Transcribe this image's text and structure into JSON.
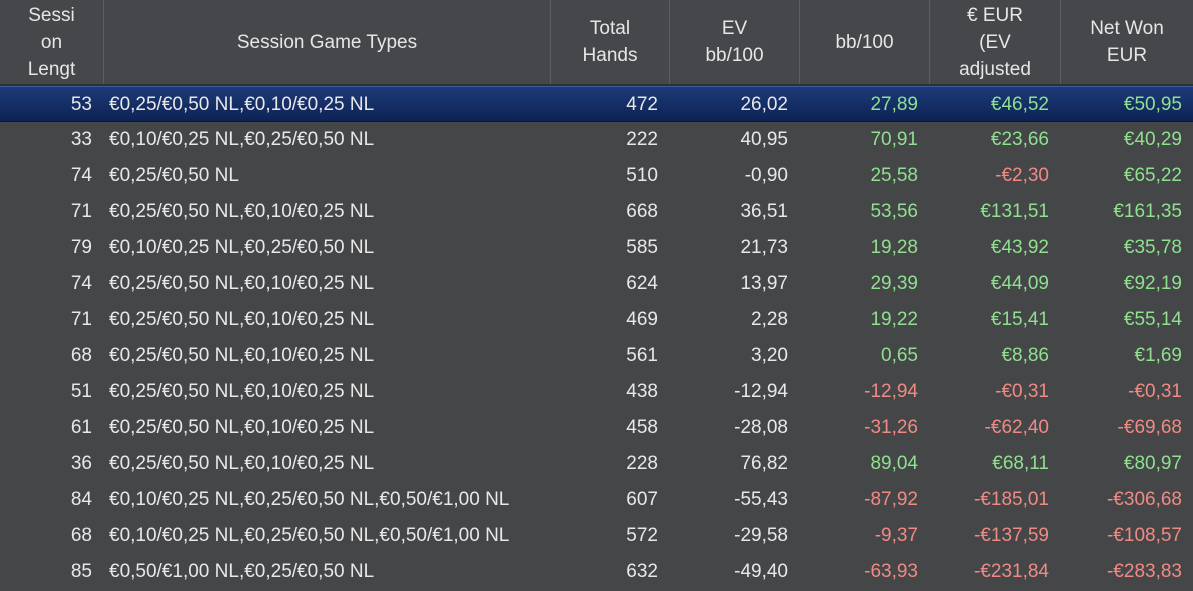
{
  "colors": {
    "positive": "#8fe08f",
    "negative": "#f08a84",
    "neutral": "#e8e8e8",
    "selected_row": "#13306a"
  },
  "columns": [
    {
      "key": "length",
      "label": "Sessi\non\nLengt"
    },
    {
      "key": "types",
      "label": "Session Game Types"
    },
    {
      "key": "hands",
      "label": "Total\nHands"
    },
    {
      "key": "ev",
      "label": "EV\nbb/100"
    },
    {
      "key": "bb",
      "label": "bb/100"
    },
    {
      "key": "evadj",
      "label": "€ EUR\n(EV\nadjusted"
    },
    {
      "key": "net",
      "label": "Net Won\nEUR"
    }
  ],
  "rows": [
    {
      "length": "53",
      "types": "€0,25/€0,50 NL,€0,10/€0,25 NL",
      "hands": "472",
      "ev": "26,02",
      "bb": "27,89",
      "evadj": "€46,52",
      "net": "€50,95",
      "selected": true
    },
    {
      "length": "33",
      "types": "€0,10/€0,25 NL,€0,25/€0,50 NL",
      "hands": "222",
      "ev": "40,95",
      "bb": "70,91",
      "evadj": "€23,66",
      "net": "€40,29"
    },
    {
      "length": "74",
      "types": "€0,25/€0,50 NL",
      "hands": "510",
      "ev": "-0,90",
      "bb": "25,58",
      "evadj": "-€2,30",
      "net": "€65,22"
    },
    {
      "length": "71",
      "types": "€0,25/€0,50 NL,€0,10/€0,25 NL",
      "hands": "668",
      "ev": "36,51",
      "bb": "53,56",
      "evadj": "€131,51",
      "net": "€161,35"
    },
    {
      "length": "79",
      "types": "€0,10/€0,25 NL,€0,25/€0,50 NL",
      "hands": "585",
      "ev": "21,73",
      "bb": "19,28",
      "evadj": "€43,92",
      "net": "€35,78"
    },
    {
      "length": "74",
      "types": "€0,25/€0,50 NL,€0,10/€0,25 NL",
      "hands": "624",
      "ev": "13,97",
      "bb": "29,39",
      "evadj": "€44,09",
      "net": "€92,19"
    },
    {
      "length": "71",
      "types": "€0,25/€0,50 NL,€0,10/€0,25 NL",
      "hands": "469",
      "ev": "2,28",
      "bb": "19,22",
      "evadj": "€15,41",
      "net": "€55,14"
    },
    {
      "length": "68",
      "types": "€0,25/€0,50 NL,€0,10/€0,25 NL",
      "hands": "561",
      "ev": "3,20",
      "bb": "0,65",
      "evadj": "€8,86",
      "net": "€1,69"
    },
    {
      "length": "51",
      "types": "€0,25/€0,50 NL,€0,10/€0,25 NL",
      "hands": "438",
      "ev": "-12,94",
      "bb": "-12,94",
      "evadj": "-€0,31",
      "net": "-€0,31"
    },
    {
      "length": "61",
      "types": "€0,25/€0,50 NL,€0,10/€0,25 NL",
      "hands": "458",
      "ev": "-28,08",
      "bb": "-31,26",
      "evadj": "-€62,40",
      "net": "-€69,68"
    },
    {
      "length": "36",
      "types": "€0,25/€0,50 NL,€0,10/€0,25 NL",
      "hands": "228",
      "ev": "76,82",
      "bb": "89,04",
      "evadj": "€68,11",
      "net": "€80,97"
    },
    {
      "length": "84",
      "types": "€0,10/€0,25 NL,€0,25/€0,50 NL,€0,50/€1,00 NL",
      "hands": "607",
      "ev": "-55,43",
      "bb": "-87,92",
      "evadj": "-€185,01",
      "net": "-€306,68"
    },
    {
      "length": "68",
      "types": "€0,10/€0,25 NL,€0,25/€0,50 NL,€0,50/€1,00 NL",
      "hands": "572",
      "ev": "-29,58",
      "bb": "-9,37",
      "evadj": "-€137,59",
      "net": "-€108,57"
    },
    {
      "length": "85",
      "types": "€0,50/€1,00 NL,€0,25/€0,50 NL",
      "hands": "632",
      "ev": "-49,40",
      "bb": "-63,93",
      "evadj": "-€231,84",
      "net": "-€283,83"
    }
  ]
}
